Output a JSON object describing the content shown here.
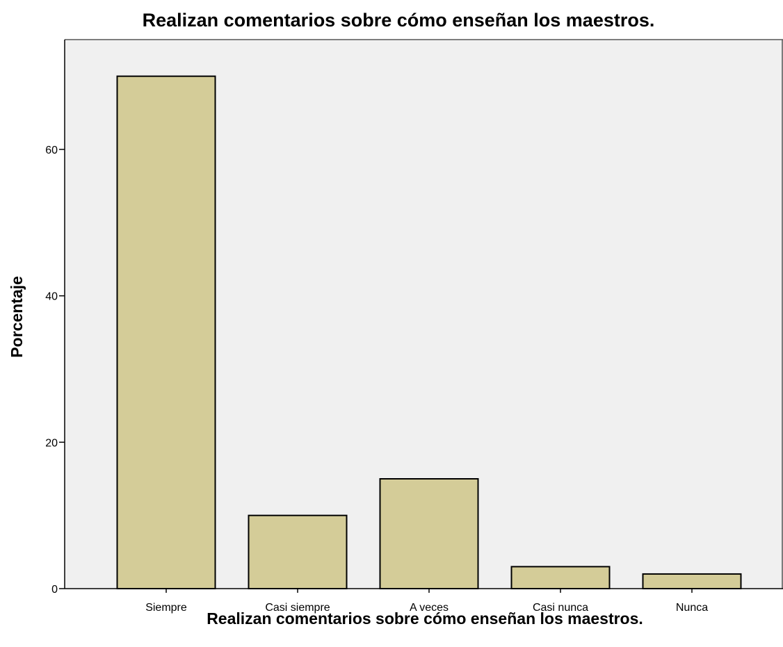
{
  "chart_data": {
    "type": "bar",
    "title": "Realizan comentarios sobre cómo enseñan los maestros.",
    "xlabel": "Realizan comentarios sobre cómo enseñan los maestros.",
    "ylabel": "Porcentaje",
    "categories": [
      "Siempre",
      "Casi siempre",
      "A veces",
      "Casi nunca",
      "Nunca"
    ],
    "values": [
      70,
      10,
      15,
      3,
      2
    ],
    "ylim": [
      0,
      75
    ],
    "yticks": [
      0,
      20,
      40,
      60
    ],
    "grid": false,
    "legend": "none",
    "colors": {
      "bar_fill": "#d4cc98",
      "bar_stroke": "#000000",
      "plot_background": "#f0f0f0",
      "axis": "#000000"
    }
  }
}
